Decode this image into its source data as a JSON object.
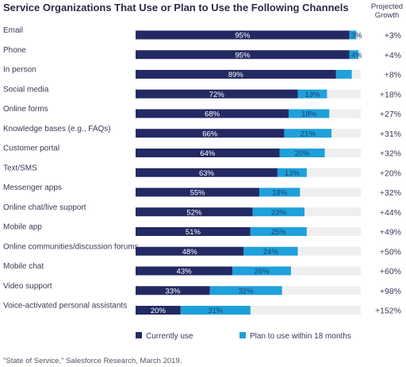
{
  "chart_data": {
    "type": "bar",
    "orientation": "horizontal",
    "stacked": true,
    "title": "Service Organizations That Use or Plan to Use the Following Channels",
    "growth_header": [
      "Projected",
      "Growth"
    ],
    "categories": [
      "Email",
      "Phone",
      "In person",
      "Social media",
      "Online forms",
      "Knowledge bases (e.g., FAQs)",
      "Customer portal",
      "Text/SMS",
      "Messenger apps",
      "Online chat/live support",
      "Mobile app",
      "Online communities/discussion forums",
      "Mobile chat",
      "Video support",
      "Voice-activated personal assistants"
    ],
    "series": [
      {
        "name": "Currently use",
        "color": "#232a63",
        "values": [
          95,
          95,
          89,
          72,
          68,
          66,
          64,
          63,
          55,
          52,
          51,
          48,
          43,
          33,
          20
        ],
        "labels": [
          "95%",
          "95%",
          "89%",
          "72%",
          "68%",
          "66%",
          "64%",
          "63%",
          "55%",
          "52%",
          "51%",
          "48%",
          "43%",
          "33%",
          "20%"
        ]
      },
      {
        "name": "Plan to use within 18 months",
        "color": "#1ea0db",
        "values": [
          3,
          4,
          7,
          13,
          18,
          21,
          20,
          13,
          18,
          23,
          25,
          24,
          26,
          32,
          31
        ],
        "labels": [
          "3%",
          "4%",
          "",
          "13%",
          "18%",
          "21%",
          "20%",
          "13%",
          "18%",
          "23%",
          "25%",
          "24%",
          "26%",
          "32%",
          "31%"
        ]
      }
    ],
    "projected_growth": [
      "+3%",
      "+4%",
      "+8%",
      "+18%",
      "+27%",
      "+31%",
      "+32%",
      "+20%",
      "+32%",
      "+44%",
      "+49%",
      "+50%",
      "+60%",
      "+98%",
      "+152%"
    ],
    "xlim": [
      0,
      100
    ],
    "track_color": "#efefef",
    "legend_position": "bottom",
    "source": "\"State of Service,\" Salesforce Research, March 2019."
  }
}
